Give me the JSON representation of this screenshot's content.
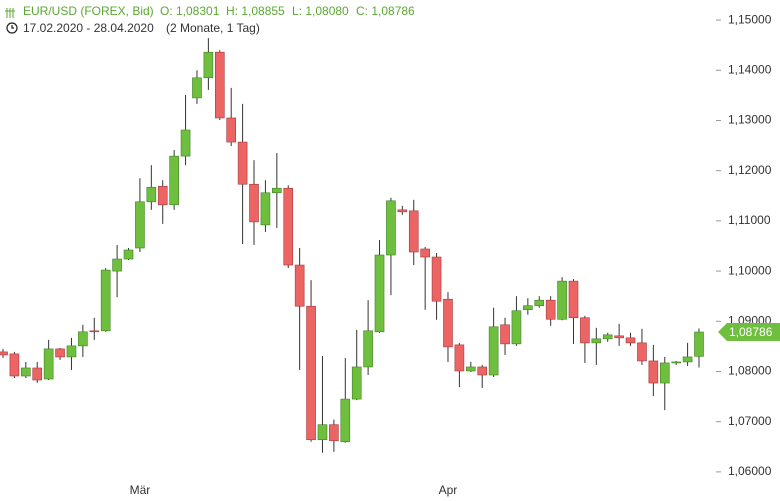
{
  "chart_data": {
    "type": "candlestick",
    "title": "EUR/USD (FOREX, Bid)",
    "ohlc_labels": [
      "O: 1,08301",
      "H: 1,08855",
      "L: 1,08080",
      "C: 1,08786"
    ],
    "subtitle": "17.02.2020 - 28.04.2020",
    "period": "(2 Monate, 1 Tag)",
    "categories": [
      null,
      null,
      null,
      null,
      null,
      null,
      null,
      null,
      null,
      null,
      null,
      null,
      "Mär",
      null,
      null,
      null,
      null,
      null,
      null,
      null,
      null,
      null,
      null,
      null,
      null,
      null,
      null,
      null,
      null,
      null,
      null,
      null,
      null,
      null,
      null,
      null,
      null,
      null,
      null,
      "Apr",
      null,
      null,
      null,
      null,
      null,
      null,
      null,
      null,
      null,
      null,
      null,
      null,
      null,
      null,
      null,
      null,
      null,
      null,
      null,
      null,
      null,
      null
    ],
    "open": [
      1.0839,
      1.0835,
      1.0791,
      1.0807,
      1.0785,
      1.0845,
      1.0829,
      1.0851,
      1.0881,
      1.0881,
      1.1,
      1.1024,
      1.1046,
      1.1138,
      1.1169,
      1.1132,
      1.1229,
      1.1345,
      1.1385,
      1.1436,
      1.1305,
      1.1257,
      1.1173,
      1.1092,
      1.1156,
      1.1165,
      1.1012,
      1.093,
      1.0664,
      1.0694,
      1.066,
      1.0745,
      1.0809,
      1.0879,
      1.1032,
      1.1122,
      1.112,
      1.1044,
      1.1028,
      1.0944,
      1.0853,
      1.0801,
      1.0809,
      1.0793,
      1.0893,
      1.0855,
      1.0923,
      1.0931,
      1.0942,
      1.0904,
      1.098,
      1.0907,
      1.0857,
      1.0865,
      1.0871,
      1.0867,
      1.0857,
      1.0821,
      1.0777,
      1.0817,
      1.0819,
      1.08301
    ],
    "high": [
      1.0845,
      1.0839,
      1.0819,
      1.0819,
      1.0863,
      1.0847,
      1.0867,
      1.0893,
      1.0907,
      1.1006,
      1.1052,
      1.1046,
      1.1185,
      1.1211,
      1.1181,
      1.1241,
      1.1351,
      1.14,
      1.1464,
      1.144,
      1.1365,
      1.1333,
      1.1221,
      1.1181,
      1.1235,
      1.1171,
      1.1046,
      1.0982,
      1.0831,
      1.0704,
      1.0827,
      1.0883,
      1.0942,
      1.1062,
      1.1146,
      1.113,
      1.1142,
      1.1048,
      1.1036,
      1.0958,
      1.0857,
      1.0819,
      1.0813,
      1.0927,
      1.0907,
      1.095,
      1.0946,
      1.095,
      1.095,
      1.0988,
      1.0984,
      1.0911,
      1.0887,
      1.0877,
      1.0895,
      1.0877,
      1.0885,
      1.0853,
      1.0829,
      1.0821,
      1.0857,
      1.08855
    ],
    "low": [
      1.0827,
      1.0787,
      1.0787,
      1.0777,
      1.0783,
      1.0823,
      1.0803,
      1.0829,
      1.0863,
      1.0879,
      1.0948,
      1.1022,
      1.1038,
      1.1122,
      1.1094,
      1.1122,
      1.1211,
      1.1333,
      1.1361,
      1.1301,
      1.1249,
      1.1054,
      1.1052,
      1.1078,
      1.1086,
      1.1006,
      1.0803,
      1.066,
      1.0638,
      1.064,
      1.0658,
      1.0743,
      1.0793,
      1.0877,
      1.0952,
      1.1112,
      1.1012,
      1.0923,
      1.0903,
      1.0819,
      1.0769,
      1.0799,
      1.0767,
      1.0789,
      1.0833,
      1.0851,
      1.0913,
      1.0927,
      1.0891,
      1.0902,
      1.0855,
      1.0817,
      1.0813,
      1.0859,
      1.0851,
      1.0851,
      1.0813,
      1.0751,
      1.0723,
      1.0813,
      1.0811,
      1.0808
    ],
    "close": [
      1.0833,
      1.0791,
      1.0807,
      1.0783,
      1.0845,
      1.0829,
      1.0851,
      1.0879,
      1.088,
      1.1002,
      1.1024,
      1.1042,
      1.1138,
      1.1167,
      1.1132,
      1.1229,
      1.1281,
      1.1385,
      1.1436,
      1.1305,
      1.1257,
      1.1173,
      1.1098,
      1.1156,
      1.1165,
      1.1012,
      1.093,
      1.0664,
      1.0694,
      1.0662,
      1.0745,
      1.0809,
      1.0881,
      1.1032,
      1.114,
      1.1118,
      1.1038,
      1.1028,
      1.094,
      1.0849,
      1.0801,
      1.0809,
      1.0793,
      1.0889,
      1.0855,
      1.0921,
      1.0931,
      1.0942,
      1.0904,
      1.098,
      1.0907,
      1.0857,
      1.0865,
      1.0873,
      1.0867,
      1.0857,
      1.0821,
      1.0777,
      1.0817,
      1.0819,
      1.0829,
      1.08786
    ],
    "up_color": "#6fbf3f",
    "down_color": "#ec6464",
    "last_price": {
      "value": 1.08786,
      "label": "1,08786"
    },
    "ylim": [
      1.0542,
      1.154
    ],
    "yticks": [
      {
        "value": 1.06,
        "label": "1,06000"
      },
      {
        "value": 1.07,
        "label": "1,07000"
      },
      {
        "value": 1.08,
        "label": "1,08000"
      },
      {
        "value": 1.09,
        "label": "1,09000"
      },
      {
        "value": 1.1,
        "label": "1,10000"
      },
      {
        "value": 1.11,
        "label": "1,11000"
      },
      {
        "value": 1.12,
        "label": "1,12000"
      },
      {
        "value": 1.13,
        "label": "1,13000"
      },
      {
        "value": 1.14,
        "label": "1,14000"
      },
      {
        "value": 1.15,
        "label": "1,15000"
      }
    ]
  }
}
